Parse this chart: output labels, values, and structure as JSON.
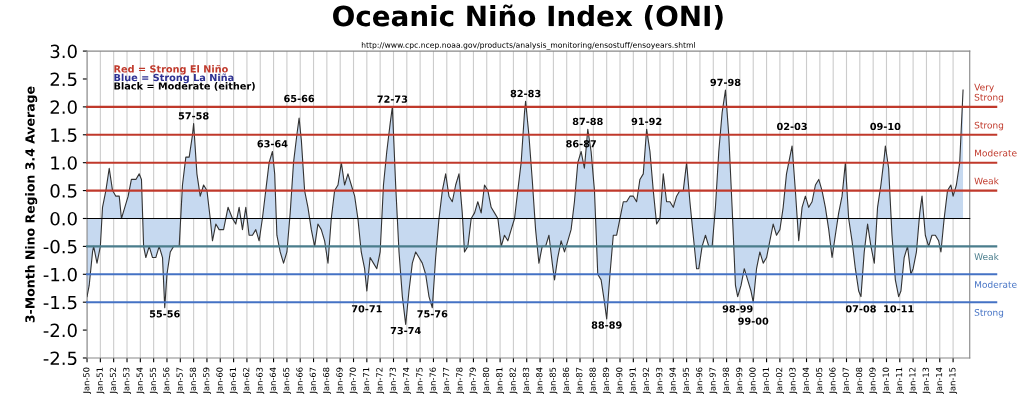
{
  "chart_data": {
    "type": "area",
    "title": "Oceanic Niño Index (ONI)",
    "ylabel": "3-Month Nino Region 3.4 Average",
    "grid": "x",
    "legend": false,
    "marker": "none",
    "line_style": "solid",
    "xlim": [
      "1950-01",
      "2016-04"
    ],
    "ylim": [
      -2.5,
      3.0
    ],
    "yticks": [
      {
        "value": -2.5,
        "label": "-2.5"
      },
      {
        "value": -2,
        "label": "-2.0"
      },
      {
        "value": -1.5,
        "label": "-1.5"
      },
      {
        "value": -1,
        "label": "-1.0"
      },
      {
        "value": -0.5,
        "label": "-0.5"
      },
      {
        "value": 0,
        "label": "0.0"
      },
      {
        "value": 0.5,
        "label": "0.5"
      },
      {
        "value": 1,
        "label": "1.0"
      },
      {
        "value": 1.5,
        "label": "1.5"
      },
      {
        "value": 2,
        "label": "2.0"
      },
      {
        "value": 2.5,
        "label": "2.5"
      },
      {
        "value": 3,
        "label": "3.0"
      }
    ],
    "xticks": [
      {
        "value": "1950-01",
        "label": "Jan-50"
      },
      {
        "value": "1951-01",
        "label": "Jan-51"
      },
      {
        "value": "1952-01",
        "label": "Jan-52"
      },
      {
        "value": "1953-01",
        "label": "Jan-53"
      },
      {
        "value": "1954-01",
        "label": "Jan-54"
      },
      {
        "value": "1955-01",
        "label": "Jan-55"
      },
      {
        "value": "1956-01",
        "label": "Jan-56"
      },
      {
        "value": "1957-01",
        "label": "Jan-57"
      },
      {
        "value": "1958-01",
        "label": "Jan-58"
      },
      {
        "value": "1959-01",
        "label": "Jan-59"
      },
      {
        "value": "1960-01",
        "label": "Jan-60"
      },
      {
        "value": "1961-01",
        "label": "Jan-61"
      },
      {
        "value": "1962-01",
        "label": "Jan-62"
      },
      {
        "value": "1963-01",
        "label": "Jan-63"
      },
      {
        "value": "1964-01",
        "label": "Jan-64"
      },
      {
        "value": "1965-01",
        "label": "Jan-65"
      },
      {
        "value": "1966-01",
        "label": "Jan-66"
      },
      {
        "value": "1967-01",
        "label": "Jan-67"
      },
      {
        "value": "1968-01",
        "label": "Jan-68"
      },
      {
        "value": "1969-01",
        "label": "Jan-69"
      },
      {
        "value": "1970-01",
        "label": "Jan-70"
      },
      {
        "value": "1971-01",
        "label": "Jan-71"
      },
      {
        "value": "1972-01",
        "label": "Jan-72"
      },
      {
        "value": "1973-01",
        "label": "Jan-73"
      },
      {
        "value": "1974-01",
        "label": "Jan-74"
      },
      {
        "value": "1975-01",
        "label": "Jan-75"
      },
      {
        "value": "1976-01",
        "label": "Jan-76"
      },
      {
        "value": "1977-01",
        "label": "Jan-77"
      },
      {
        "value": "1978-01",
        "label": "Jan-78"
      },
      {
        "value": "1979-01",
        "label": "Jan-79"
      },
      {
        "value": "1980-01",
        "label": "Jan-80"
      },
      {
        "value": "1981-01",
        "label": "Jan-81"
      },
      {
        "value": "1982-01",
        "label": "Jan-82"
      },
      {
        "value": "1983-01",
        "label": "Jan-83"
      },
      {
        "value": "1984-01",
        "label": "Jan-84"
      },
      {
        "value": "1985-01",
        "label": "Jan-85"
      },
      {
        "value": "1986-01",
        "label": "Jan-86"
      },
      {
        "value": "1987-01",
        "label": "Jan-87"
      },
      {
        "value": "1988-01",
        "label": "Jan-88"
      },
      {
        "value": "1989-01",
        "label": "Jan-89"
      },
      {
        "value": "1990-01",
        "label": "Jan-90"
      },
      {
        "value": "1991-01",
        "label": "Jan-91"
      },
      {
        "value": "1992-01",
        "label": "Jan-92"
      },
      {
        "value": "1993-01",
        "label": "Jan-93"
      },
      {
        "value": "1994-01",
        "label": "Jan-94"
      },
      {
        "value": "1995-01",
        "label": "Jan-95"
      },
      {
        "value": "1996-01",
        "label": "Jan-96"
      },
      {
        "value": "1997-01",
        "label": "Jan-97"
      },
      {
        "value": "1998-01",
        "label": "Jan-98"
      },
      {
        "value": "1999-01",
        "label": "Jan-99"
      },
      {
        "value": "2000-01",
        "label": "Jan-00"
      },
      {
        "value": "2001-01",
        "label": "Jan-01"
      },
      {
        "value": "2002-01",
        "label": "Jan-02"
      },
      {
        "value": "2003-01",
        "label": "Jan-03"
      },
      {
        "value": "2004-01",
        "label": "Jan-04"
      },
      {
        "value": "2005-01",
        "label": "Jan-05"
      },
      {
        "value": "2006-01",
        "label": "Jan-06"
      },
      {
        "value": "2007-01",
        "label": "Jan-07"
      },
      {
        "value": "2008-01",
        "label": "Jan-08"
      },
      {
        "value": "2009-01",
        "label": "Jan-09"
      },
      {
        "value": "2010-01",
        "label": "Jan-10"
      },
      {
        "value": "2011-01",
        "label": "Jan-11"
      },
      {
        "value": "2012-01",
        "label": "Jan-12"
      },
      {
        "value": "2013-01",
        "label": "Jan-13"
      },
      {
        "value": "2014-01",
        "label": "Jan-14"
      },
      {
        "value": "2015-01",
        "label": "Jan-15"
      }
    ],
    "series": [
      {
        "color": "#c6d9f0",
        "x": [
          "1950-01",
          "1950-03",
          "1950-06",
          "1950-07",
          "1950-10",
          "1951-01",
          "1951-03",
          "1951-06",
          "1951-09",
          "1951-12",
          "1952-03",
          "1952-06",
          "1952-08",
          "1952-11",
          "1953-02",
          "1953-05",
          "1953-09",
          "1953-12",
          "1954-02",
          "1954-04",
          "1954-06",
          "1954-09",
          "1954-12",
          "1955-03",
          "1955-06",
          "1955-09",
          "1955-11",
          "1956-01",
          "1956-04",
          "1956-07",
          "1956-10",
          "1956-12",
          "1957-03",
          "1957-06",
          "1957-09",
          "1957-12",
          "1958-01",
          "1958-04",
          "1958-07",
          "1958-10",
          "1959-01",
          "1959-04",
          "1959-06",
          "1959-09",
          "1959-12",
          "1960-04",
          "1960-08",
          "1960-12",
          "1961-03",
          "1961-06",
          "1961-09",
          "1961-12",
          "1962-03",
          "1962-06",
          "1962-09",
          "1962-12",
          "1963-03",
          "1963-06",
          "1963-09",
          "1963-12",
          "1964-02",
          "1964-04",
          "1964-07",
          "1964-10",
          "1965-01",
          "1965-04",
          "1965-07",
          "1965-10",
          "1965-12",
          "1966-02",
          "1966-05",
          "1966-08",
          "1966-11",
          "1967-02",
          "1967-05",
          "1967-08",
          "1967-11",
          "1968-02",
          "1968-05",
          "1968-08",
          "1968-11",
          "1969-02",
          "1969-05",
          "1969-08",
          "1969-11",
          "1970-02",
          "1970-05",
          "1970-08",
          "1970-11",
          "1971-01",
          "1971-04",
          "1971-07",
          "1971-10",
          "1972-01",
          "1972-04",
          "1972-07",
          "1972-10",
          "1972-12",
          "1973-03",
          "1973-06",
          "1973-09",
          "1973-12",
          "1974-03",
          "1974-06",
          "1974-09",
          "1974-12",
          "1975-03",
          "1975-06",
          "1975-09",
          "1975-12",
          "1976-03",
          "1976-06",
          "1976-09",
          "1976-12",
          "1977-03",
          "1977-06",
          "1977-09",
          "1977-12",
          "1978-03",
          "1978-05",
          "1978-08",
          "1978-11",
          "1979-02",
          "1979-05",
          "1979-08",
          "1979-11",
          "1980-02",
          "1980-05",
          "1980-08",
          "1980-11",
          "1981-02",
          "1981-05",
          "1981-08",
          "1981-11",
          "1982-02",
          "1982-05",
          "1982-08",
          "1982-11",
          "1982-12",
          "1983-03",
          "1983-06",
          "1983-09",
          "1983-12",
          "1984-03",
          "1984-06",
          "1984-09",
          "1984-12",
          "1985-02",
          "1985-05",
          "1985-08",
          "1985-11",
          "1986-02",
          "1986-05",
          "1986-08",
          "1986-11",
          "1987-02",
          "1987-05",
          "1987-08",
          "1987-11",
          "1988-02",
          "1988-05",
          "1988-08",
          "1988-11",
          "1989-01",
          "1989-04",
          "1989-07",
          "1989-10",
          "1990-01",
          "1990-04",
          "1990-07",
          "1990-10",
          "1991-01",
          "1991-04",
          "1991-07",
          "1991-10",
          "1992-01",
          "1992-04",
          "1992-07",
          "1992-10",
          "1993-01",
          "1993-04",
          "1993-07",
          "1993-10",
          "1994-01",
          "1994-04",
          "1994-07",
          "1994-10",
          "1995-01",
          "1995-04",
          "1995-07",
          "1995-10",
          "1995-12",
          "1996-03",
          "1996-06",
          "1996-09",
          "1996-12",
          "1997-03",
          "1997-06",
          "1997-09",
          "1997-12",
          "1998-03",
          "1998-06",
          "1998-09",
          "1998-11",
          "1999-02",
          "1999-05",
          "1999-08",
          "1999-11",
          "2000-01",
          "2000-04",
          "2000-07",
          "2000-10",
          "2001-01",
          "2001-04",
          "2001-07",
          "2001-10",
          "2002-01",
          "2002-04",
          "2002-07",
          "2002-10",
          "2002-12",
          "2003-03",
          "2003-06",
          "2003-09",
          "2003-12",
          "2004-03",
          "2004-06",
          "2004-09",
          "2004-12",
          "2005-03",
          "2005-06",
          "2005-09",
          "2005-12",
          "2006-03",
          "2006-06",
          "2006-09",
          "2006-12",
          "2007-03",
          "2007-06",
          "2007-09",
          "2007-12",
          "2008-02",
          "2008-05",
          "2008-08",
          "2008-11",
          "2009-02",
          "2009-05",
          "2009-08",
          "2009-11",
          "2009-12",
          "2010-03",
          "2010-06",
          "2010-09",
          "2010-12",
          "2011-02",
          "2011-05",
          "2011-08",
          "2011-11",
          "2012-01",
          "2012-04",
          "2012-07",
          "2012-09",
          "2012-12",
          "2013-03",
          "2013-06",
          "2013-09",
          "2013-12",
          "2014-02",
          "2014-05",
          "2014-08",
          "2014-11",
          "2015-01",
          "2015-04",
          "2015-07",
          "2015-10"
        ],
        "values": [
          -1.4,
          -1.2,
          -0.6,
          -0.5,
          -0.8,
          -0.5,
          0.2,
          0.5,
          0.9,
          0.5,
          0.4,
          0.4,
          0.0,
          0.2,
          0.4,
          0.7,
          0.7,
          0.8,
          0.7,
          -0.5,
          -0.7,
          -0.5,
          -0.7,
          -0.7,
          -0.5,
          -0.7,
          -1.6,
          -1.0,
          -0.6,
          -0.5,
          -0.5,
          -0.5,
          0.6,
          1.1,
          1.1,
          1.5,
          1.7,
          0.8,
          0.4,
          0.6,
          0.5,
          0.0,
          -0.4,
          -0.1,
          -0.2,
          -0.2,
          0.2,
          0.0,
          -0.1,
          0.2,
          -0.2,
          0.2,
          -0.3,
          -0.3,
          -0.2,
          -0.4,
          0.0,
          0.5,
          1.0,
          1.2,
          0.8,
          -0.3,
          -0.6,
          -0.8,
          -0.6,
          0.1,
          1.0,
          1.5,
          1.8,
          1.4,
          0.5,
          0.2,
          -0.2,
          -0.5,
          -0.1,
          -0.2,
          -0.4,
          -0.8,
          0.0,
          0.5,
          0.6,
          1.0,
          0.6,
          0.8,
          0.6,
          0.4,
          0.0,
          -0.6,
          -0.9,
          -1.3,
          -0.7,
          -0.8,
          -0.9,
          -0.6,
          0.6,
          1.2,
          1.7,
          2.0,
          0.6,
          -0.6,
          -1.4,
          -1.9,
          -1.3,
          -0.8,
          -0.6,
          -0.7,
          -0.8,
          -1.0,
          -1.4,
          -1.6,
          -0.7,
          0.0,
          0.5,
          0.8,
          0.4,
          0.3,
          0.6,
          0.8,
          0.1,
          -0.6,
          -0.5,
          0.0,
          0.1,
          0.3,
          0.1,
          0.6,
          0.5,
          0.2,
          0.1,
          0.0,
          -0.5,
          -0.3,
          -0.4,
          -0.2,
          0.0,
          0.5,
          1.0,
          1.9,
          2.1,
          1.5,
          0.7,
          -0.2,
          -0.8,
          -0.5,
          -0.5,
          -0.3,
          -0.8,
          -1.1,
          -0.7,
          -0.4,
          -0.6,
          -0.4,
          -0.2,
          0.3,
          1.0,
          1.2,
          0.9,
          1.6,
          1.2,
          0.5,
          -1.0,
          -1.1,
          -1.5,
          -1.8,
          -1.0,
          -0.3,
          -0.3,
          0.0,
          0.3,
          0.3,
          0.4,
          0.4,
          0.3,
          0.7,
          0.8,
          1.6,
          1.2,
          0.5,
          -0.1,
          0.0,
          0.8,
          0.3,
          0.3,
          0.2,
          0.4,
          0.5,
          0.5,
          1.0,
          0.3,
          -0.3,
          -0.9,
          -0.9,
          -0.5,
          -0.3,
          -0.5,
          -0.5,
          0.2,
          1.2,
          1.9,
          2.3,
          1.5,
          0.2,
          -1.2,
          -1.4,
          -1.2,
          -0.9,
          -1.1,
          -1.3,
          -1.5,
          -0.9,
          -0.6,
          -0.8,
          -0.7,
          -0.4,
          -0.1,
          -0.3,
          -0.2,
          0.2,
          0.8,
          1.1,
          1.3,
          0.5,
          -0.4,
          0.2,
          0.4,
          0.2,
          0.3,
          0.6,
          0.7,
          0.5,
          0.2,
          -0.2,
          -0.7,
          -0.3,
          0.1,
          0.4,
          1.0,
          0.0,
          -0.4,
          -0.9,
          -1.3,
          -1.4,
          -0.6,
          -0.1,
          -0.5,
          -0.8,
          0.2,
          0.6,
          1.1,
          1.3,
          0.9,
          -0.3,
          -1.1,
          -1.4,
          -1.3,
          -0.7,
          -0.5,
          -1.0,
          -0.9,
          -0.6,
          0.1,
          0.4,
          -0.3,
          -0.5,
          -0.3,
          -0.3,
          -0.4,
          -0.6,
          0.0,
          0.5,
          0.6,
          0.4,
          0.6,
          1.0,
          2.3
        ]
      }
    ],
    "ref_lines": [
      {
        "axis": "y",
        "value": 0,
        "color": "#000000"
      },
      {
        "axis": "y",
        "value": 2.0,
        "label": "Very\nStrong",
        "color": "#c0392b"
      },
      {
        "axis": "y",
        "value": 1.5,
        "label": "Strong",
        "color": "#c0392b"
      },
      {
        "axis": "y",
        "value": 1.0,
        "label": "Moderate",
        "color": "#c0392b"
      },
      {
        "axis": "y",
        "value": 0.5,
        "label": "Weak",
        "color": "#c0392b"
      },
      {
        "axis": "y",
        "value": -0.5,
        "label": "Weak",
        "color": "#4a7d8c"
      },
      {
        "axis": "y",
        "value": -1.0,
        "label": "Moderate",
        "color": "#4472c4"
      },
      {
        "axis": "y",
        "value": -1.5,
        "label": "Strong",
        "color": "#4472c4"
      }
    ],
    "annotations": [
      "http://www.cpc.ncep.noaa.gov/products/analysis_monitoring/ensostuff/ensoyears.shtml",
      "Red = Strong El Niño",
      "Blue = Strong La Niña",
      "Black = Moderate (either)",
      {
        "text": "55-56",
        "x": "1955-11",
        "y": -1.6
      },
      {
        "text": "57-58",
        "x": "1958-01",
        "y": 1.7
      },
      {
        "text": "63-64",
        "x": "1963-12",
        "y": 1.2
      },
      {
        "text": "65-66",
        "x": "1965-12",
        "y": 1.8
      },
      {
        "text": "70-71",
        "x": "1971-01",
        "y": -1.3
      },
      {
        "text": "72-73",
        "x": "1972-12",
        "y": 2.0
      },
      {
        "text": "73-74",
        "x": "1973-12",
        "y": -1.9
      },
      {
        "text": "75-76",
        "x": "1975-12",
        "y": -1.6
      },
      {
        "text": "82-83",
        "x": "1982-12",
        "y": 2.1
      },
      {
        "text": "86-87",
        "x": "1987-02",
        "y": 1.2
      },
      {
        "text": "87-88",
        "x": "1987-08",
        "y": 1.6
      },
      {
        "text": "88-89",
        "x": "1989-01",
        "y": -1.8
      },
      {
        "text": "91-92",
        "x": "1992-01",
        "y": 1.6
      },
      {
        "text": "97-98",
        "x": "1997-12",
        "y": 2.3
      },
      {
        "text": "98-99",
        "x": "1998-11",
        "y": -1.4
      },
      {
        "text": "99-00",
        "x": "2000-01",
        "y": -1.5
      },
      {
        "text": "02-03",
        "x": "2002-12",
        "y": 1.3
      },
      {
        "text": "07-08",
        "x": "2008-02",
        "y": -1.4
      },
      {
        "text": "09-10",
        "x": "2009-12",
        "y": 1.3
      },
      {
        "text": "10-11",
        "x": "2010-12",
        "y": -1.4
      }
    ]
  }
}
